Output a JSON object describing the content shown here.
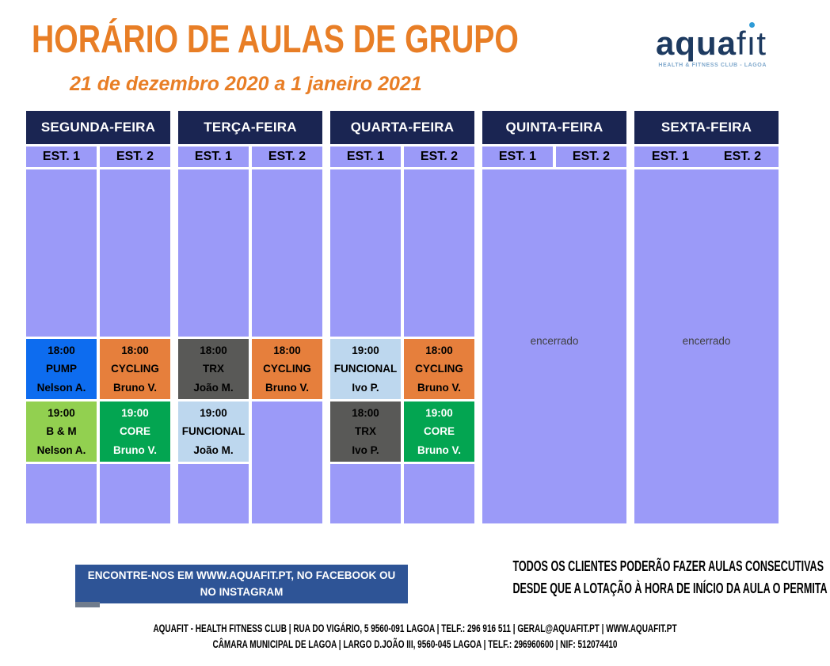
{
  "theme": {
    "title-orange": "#E87E26",
    "navy": "#1A2552",
    "lavender": "#9B9AF8",
    "box-blue": "#2E5496",
    "logo-navy": "#1D3A60",
    "logo-teal": "#2E9BD6",
    "logo-light": "#7FA8CC",
    "closed-text": "#3F3F3F"
  },
  "header": {
    "title": "HORÁRIO DE AULAS DE GRUPO",
    "subtitle": "21 de dezembro 2020 a 1 janeiro 2021"
  },
  "logo": {
    "aqua": "aqua",
    "fit_f": "f",
    "fit_i": "ı",
    "fit_t": "t",
    "tagline": "HEALTH & FITNESS CLUB - LAGOA"
  },
  "schedule": {
    "est_labels": [
      "EST. 1",
      "EST. 2"
    ],
    "closed_label": "encerrado",
    "days": [
      {
        "name": "SEGUNDA-FEIRA",
        "closed": false,
        "studios": [
          {
            "label": "EST. 1",
            "slots": [
              {
                "time": "18:00",
                "name": "PUMP",
                "instructor": "Nelson A.",
                "bg": "#0D6CEF",
                "fg": "#000000"
              },
              {
                "time": "19:00",
                "name": "B & M",
                "instructor": "Nelson A.",
                "bg": "#92D050",
                "fg": "#000000"
              }
            ]
          },
          {
            "label": "EST. 2",
            "slots": [
              {
                "time": "18:00",
                "name": "CYCLING",
                "instructor": "Bruno V.",
                "bg": "#E67F3C",
                "fg": "#000000"
              },
              {
                "time": "19:00",
                "name": "CORE",
                "instructor": "Bruno V.",
                "bg": "#03A551",
                "fg": "#FFFFFF"
              }
            ]
          }
        ]
      },
      {
        "name": "TERÇA-FEIRA",
        "closed": false,
        "studios": [
          {
            "label": "EST. 1",
            "slots": [
              {
                "time": "18:00",
                "name": "TRX",
                "instructor": "João M.",
                "bg": "#595957",
                "fg": "#000000"
              },
              {
                "time": "19:00",
                "name": "FUNCIONAL",
                "instructor": "João M.",
                "bg": "#BDD7EE",
                "fg": "#000000"
              }
            ]
          },
          {
            "label": "EST. 2",
            "slots": [
              {
                "time": "18:00",
                "name": "CYCLING",
                "instructor": "Bruno V.",
                "bg": "#E67F3C",
                "fg": "#000000"
              }
            ]
          }
        ]
      },
      {
        "name": "QUARTA-FEIRA",
        "closed": false,
        "studios": [
          {
            "label": "EST. 1",
            "slots": [
              {
                "time": "19:00",
                "name": "FUNCIONAL",
                "instructor": "Ivo P.",
                "bg": "#BDD7EE",
                "fg": "#000000"
              },
              {
                "time": "18:00",
                "name": "TRX",
                "instructor": "Ivo P.",
                "bg": "#595957",
                "fg": "#000000"
              }
            ]
          },
          {
            "label": "EST. 2",
            "slots": [
              {
                "time": "18:00",
                "name": "CYCLING",
                "instructor": "Bruno V.",
                "bg": "#E67F3C",
                "fg": "#000000"
              },
              {
                "time": "19:00",
                "name": "CORE",
                "instructor": "Bruno V.",
                "bg": "#03A551",
                "fg": "#FFFFFF"
              }
            ]
          }
        ]
      },
      {
        "name": "QUINTA-FEIRA",
        "closed": true
      },
      {
        "name": "SEXTA-FEIRA",
        "closed": true
      }
    ]
  },
  "notices": {
    "find_us": "ENCONTRE-NOS EM WWW.AQUAFIT.PT, NO FACEBOOK OU NO INSTAGRAM",
    "consecutive_line1": "TODOS OS CLIENTES PODERÃO FAZER AULAS CONSECUTIVAS",
    "consecutive_line2": "DESDE QUE A LOTAÇÃO À HORA DE INÍCIO DA AULA O PERMITA"
  },
  "footer": {
    "line1": "AQUAFIT - HEALTH FITNESS CLUB | RUA DO VIGÁRIO, 5 9560-091 LAGOA | TELF.: 296 916 511 | GERAL@AQUAFIT.PT | WWW.AQUAFIT.PT",
    "line2": "CÂMARA MUNICIPAL DE LAGOA | LARGO D.JOÃO III, 9560-045 LAGOA | TELF.: 296960600 | NIF: 512074410"
  }
}
